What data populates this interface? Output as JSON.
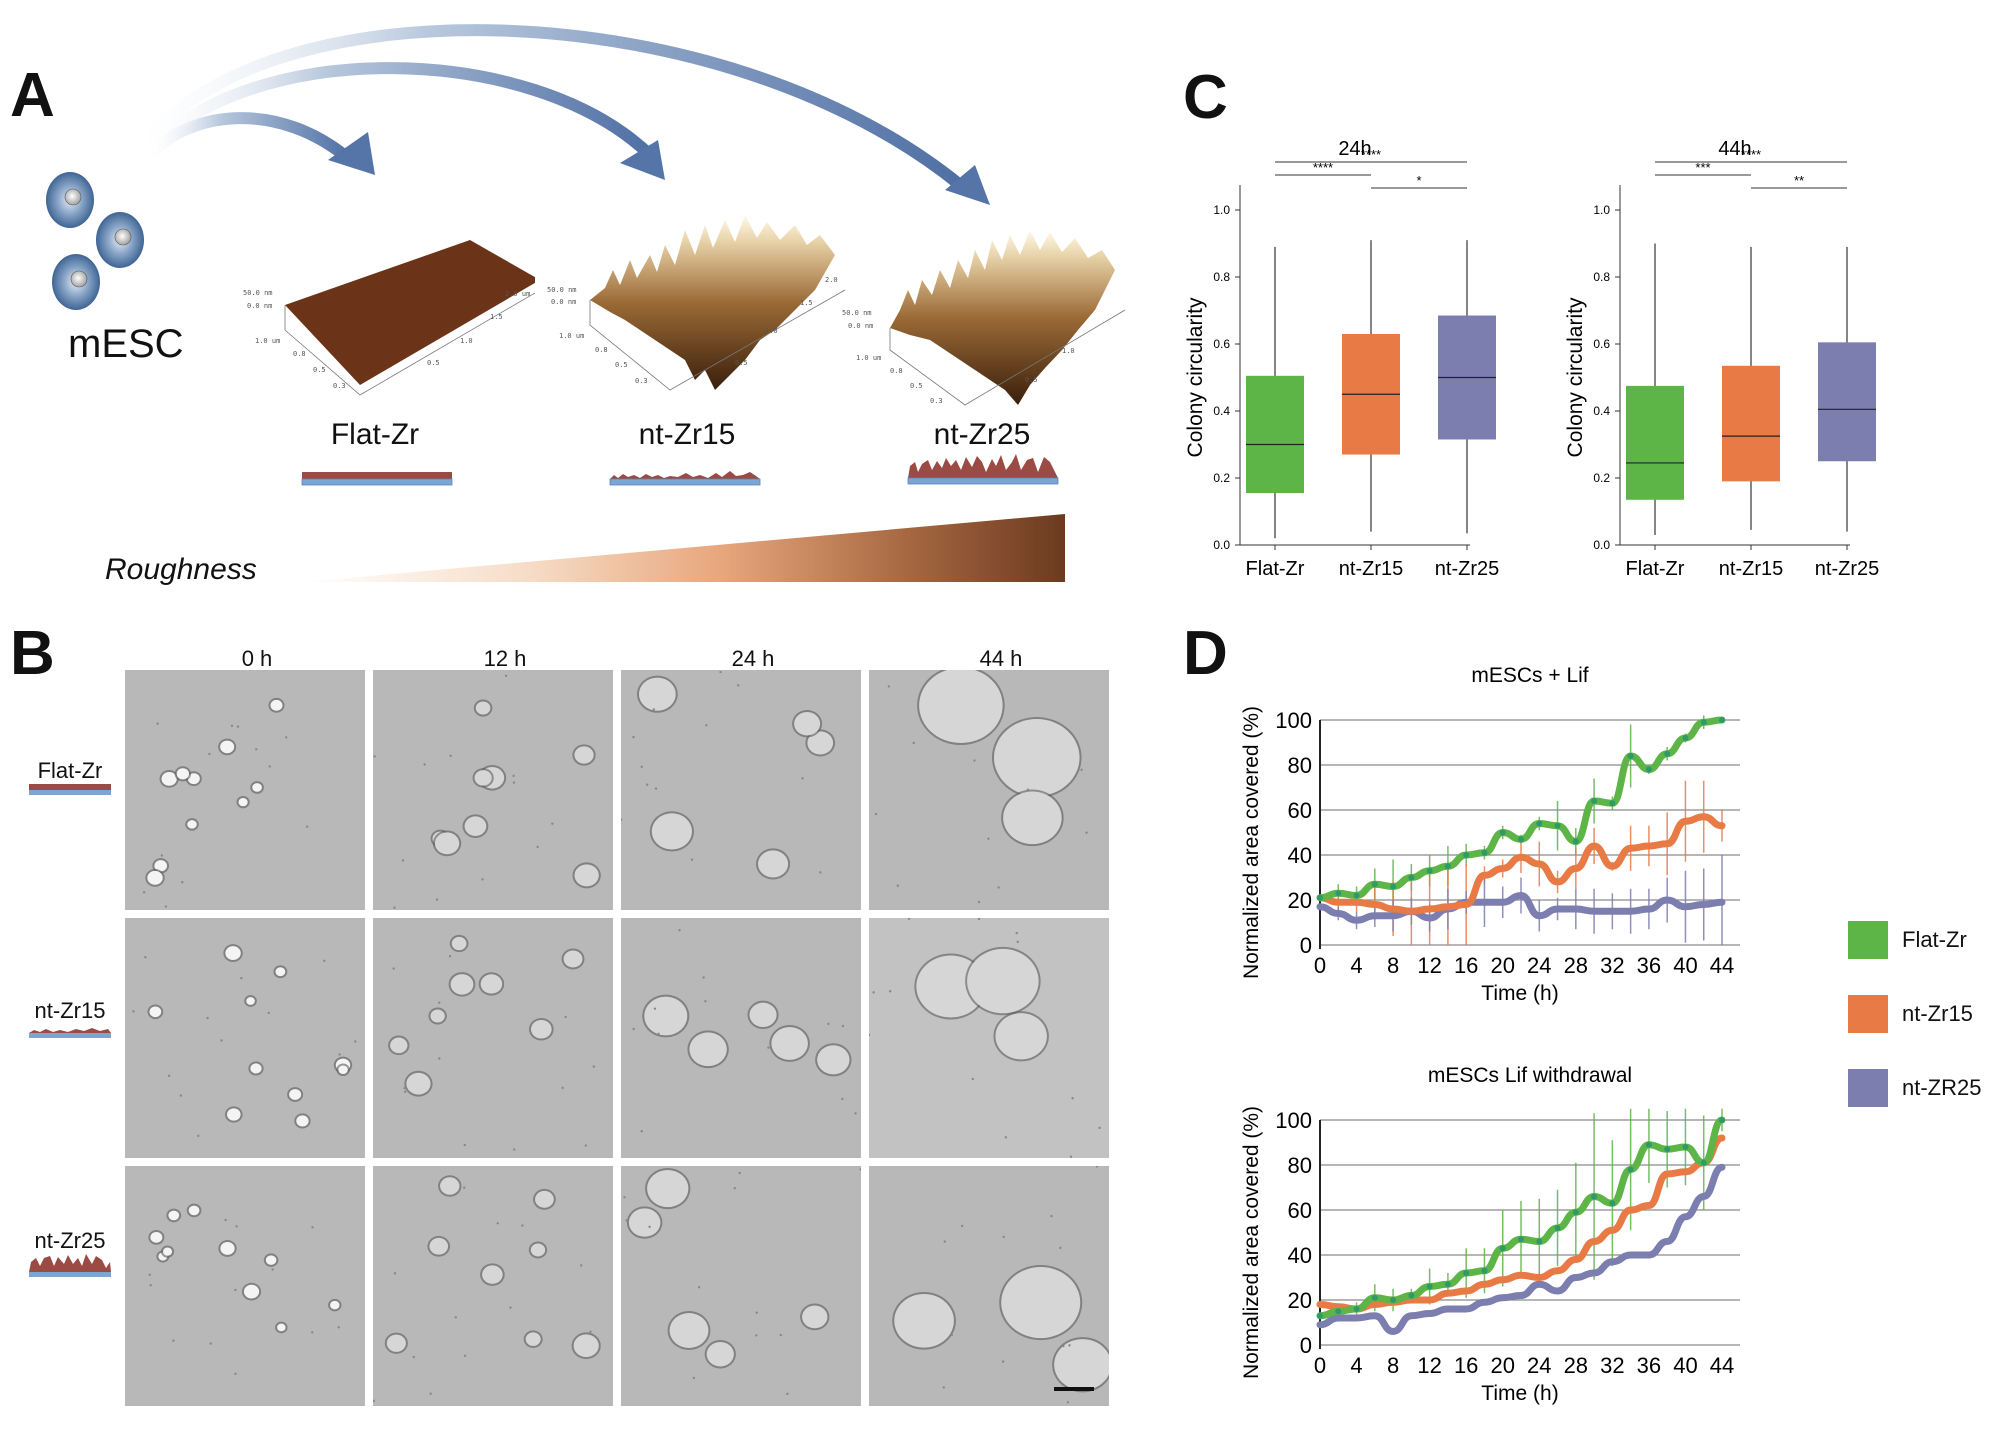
{
  "panels": {
    "A": {
      "letter": "A",
      "cell_label": "mESC",
      "surfaces": [
        {
          "name": "Flat-Zr",
          "afm_axes": {
            "z_max": "50.0 nm",
            "z_min": "0.0 nm",
            "y_ticks": [
              "1.0 um",
              "0.8",
              "0.5",
              "0.3"
            ],
            "x_ticks": [
              "0.5",
              "1.0",
              "1.5",
              "2.0 um"
            ]
          }
        },
        {
          "name": "nt-Zr15",
          "afm_axes": {
            "z_max": "50.0 nm",
            "z_min": "0.0 nm",
            "y_ticks": [
              "1.0 um",
              "0.8",
              "0.5",
              "0.3"
            ],
            "x_ticks": [
              "0.5",
              "1.0",
              "1.5",
              "2.0"
            ]
          }
        },
        {
          "name": "nt-Zr25",
          "afm_axes": {
            "z_max": "50.0 nm",
            "z_min": "0.0 nm",
            "y_ticks": [
              "1.0 um",
              "0.8",
              "0.5",
              "0.3"
            ],
            "x_ticks": [
              "0.5",
              "1.0",
              "1.5",
              "2.0"
            ]
          }
        }
      ],
      "gradient_label": "Roughness",
      "colors": {
        "arrow": "#5574a8",
        "surface_brown": "#8a4a2a",
        "substrate_top": "#9b4a44",
        "substrate_base": "#7aa6d6",
        "gradient_end": "#6b3a1f"
      }
    },
    "B": {
      "letter": "B",
      "columns": [
        "0 h",
        "12 h",
        "24 h",
        "44 h"
      ],
      "rows": [
        "Flat-Zr",
        "nt-Zr15",
        "nt-Zr25"
      ],
      "scale_bar": true
    },
    "C": {
      "letter": "C",
      "ylabel": "Colony circularity"
    },
    "D": {
      "letter": "D",
      "legend": [
        {
          "label": "Flat-Zr",
          "color": "#5db447"
        },
        {
          "label": "nt-Zr15",
          "color": "#e87b45"
        },
        {
          "label": "nt-ZR25",
          "color": "#7d7eb0"
        }
      ]
    }
  },
  "chart_data": [
    {
      "type": "box",
      "title": "24h",
      "xlabel": "",
      "ylabel": "Colony circularity",
      "ylim": [
        0,
        1.0
      ],
      "yticks": [
        "0.0",
        "0.2",
        "0.4",
        "0.6",
        "0.8",
        "1.0"
      ],
      "categories": [
        "Flat-Zr",
        "nt-Zr15",
        "nt-Zr25"
      ],
      "colors": [
        "#5db447",
        "#e87b45",
        "#7d7eb0"
      ],
      "boxes": [
        {
          "min": 0.02,
          "q1": 0.155,
          "median": 0.3,
          "q3": 0.505,
          "max": 0.89
        },
        {
          "min": 0.04,
          "q1": 0.27,
          "median": 0.45,
          "q3": 0.63,
          "max": 0.91
        },
        {
          "min": 0.035,
          "q1": 0.315,
          "median": 0.5,
          "q3": 0.685,
          "max": 0.91
        }
      ],
      "significance": [
        {
          "from": "Flat-Zr",
          "to": "nt-Zr25",
          "label": "****"
        },
        {
          "from": "Flat-Zr",
          "to": "nt-Zr15",
          "label": "****"
        },
        {
          "from": "nt-Zr15",
          "to": "nt-Zr25",
          "label": "*"
        }
      ]
    },
    {
      "type": "box",
      "title": "44h",
      "xlabel": "",
      "ylabel": "Colony circularity",
      "ylim": [
        0,
        1.0
      ],
      "yticks": [
        "0.0",
        "0.2",
        "0.4",
        "0.6",
        "0.8",
        "1.0"
      ],
      "categories": [
        "Flat-Zr",
        "nt-Zr15",
        "nt-Zr25"
      ],
      "colors": [
        "#5db447",
        "#e87b45",
        "#7d7eb0"
      ],
      "boxes": [
        {
          "min": 0.03,
          "q1": 0.135,
          "median": 0.245,
          "q3": 0.475,
          "max": 0.9
        },
        {
          "min": 0.045,
          "q1": 0.19,
          "median": 0.325,
          "q3": 0.535,
          "max": 0.89
        },
        {
          "min": 0.04,
          "q1": 0.25,
          "median": 0.405,
          "q3": 0.605,
          "max": 0.89
        }
      ],
      "significance": [
        {
          "from": "Flat-Zr",
          "to": "nt-Zr25",
          "label": "****"
        },
        {
          "from": "Flat-Zr",
          "to": "nt-Zr15",
          "label": "***"
        },
        {
          "from": "nt-Zr15",
          "to": "nt-Zr25",
          "label": "**"
        }
      ]
    },
    {
      "type": "line",
      "title": "mESCs + Lif",
      "xlabel": "Time (h)",
      "ylabel": "Normalized area covered (%)",
      "xlim": [
        0,
        44
      ],
      "ylim": [
        0,
        100
      ],
      "xticks": [
        0,
        4,
        8,
        12,
        16,
        20,
        24,
        28,
        32,
        36,
        40,
        44
      ],
      "yticks": [
        0,
        20,
        40,
        60,
        80,
        100
      ],
      "grid": true,
      "x": [
        0,
        2,
        4,
        6,
        8,
        10,
        12,
        14,
        16,
        18,
        20,
        22,
        24,
        26,
        28,
        30,
        32,
        34,
        36,
        38,
        40,
        42,
        44
      ],
      "series": [
        {
          "name": "Flat-Zr",
          "color": "#5db447",
          "values": [
            21,
            23,
            22,
            27,
            26,
            30,
            33,
            35,
            40,
            41,
            50,
            47,
            54,
            53,
            46,
            64,
            63,
            84,
            78,
            85,
            92,
            99,
            100
          ],
          "errors": [
            1,
            4,
            4,
            7,
            12,
            6,
            7,
            9,
            5,
            3,
            3,
            2,
            3,
            11,
            6,
            10,
            3,
            14,
            2,
            3,
            2,
            3,
            1
          ]
        },
        {
          "name": "nt-Zr15",
          "color": "#e87b45",
          "values": [
            21,
            19,
            19,
            18,
            16,
            15,
            16,
            17,
            18,
            31,
            34,
            39,
            36,
            28,
            34,
            44,
            35,
            43,
            44,
            45,
            55,
            57,
            53
          ],
          "errors": [
            1,
            4,
            4,
            7,
            12,
            15,
            16,
            17,
            18,
            4,
            4,
            7,
            10,
            5,
            9,
            8,
            2,
            10,
            9,
            14,
            18,
            16,
            7
          ]
        },
        {
          "name": "nt-ZR25",
          "color": "#7d7eb0",
          "values": [
            17,
            14,
            11,
            13,
            13,
            15,
            12,
            16,
            19,
            19,
            19,
            22,
            13,
            16,
            16,
            15,
            15,
            15,
            16,
            20,
            17,
            18,
            19
          ],
          "errors": [
            1,
            3,
            4,
            5,
            7,
            6,
            6,
            9,
            5,
            11,
            7,
            8,
            7,
            5,
            9,
            10,
            8,
            10,
            9,
            10,
            16,
            16,
            21
          ]
        }
      ]
    },
    {
      "type": "line",
      "title": "mESCs Lif withdrawal",
      "xlabel": "Time (h)",
      "ylabel": "Normalized area covered (%)",
      "xlim": [
        0,
        44
      ],
      "ylim": [
        0,
        100
      ],
      "xticks": [
        0,
        4,
        8,
        12,
        16,
        20,
        24,
        28,
        32,
        36,
        40,
        44
      ],
      "yticks": [
        0,
        20,
        40,
        60,
        80,
        100
      ],
      "grid": true,
      "x": [
        0,
        2,
        4,
        6,
        8,
        10,
        12,
        14,
        16,
        18,
        20,
        22,
        24,
        26,
        28,
        30,
        32,
        34,
        36,
        38,
        40,
        42,
        44
      ],
      "series": [
        {
          "name": "Flat-Zr",
          "color": "#5db447",
          "values": [
            13,
            15,
            16,
            21,
            20,
            22,
            26,
            27,
            32,
            33,
            43,
            47,
            46,
            52,
            59,
            66,
            63,
            78,
            89,
            87,
            88,
            81,
            100
          ],
          "errors": [
            1,
            3,
            3,
            6,
            5,
            3,
            8,
            5,
            11,
            10,
            17,
            17,
            19,
            17,
            22,
            37,
            28,
            27,
            17,
            17,
            17,
            21,
            5
          ]
        },
        {
          "name": "nt-Zr15",
          "color": "#e87b45",
          "values": [
            18,
            17,
            16,
            18,
            19,
            20,
            20,
            23,
            24,
            27,
            29,
            31,
            30,
            33,
            38,
            46,
            51,
            60,
            62,
            76,
            77,
            81,
            92
          ]
        },
        {
          "name": "nt-ZR25",
          "color": "#7d7eb0",
          "values": [
            9,
            12,
            12,
            13,
            6,
            13,
            14,
            16,
            16,
            19,
            21,
            22,
            27,
            24,
            30,
            32,
            37,
            40,
            40,
            46,
            57,
            66,
            79
          ]
        }
      ]
    }
  ]
}
